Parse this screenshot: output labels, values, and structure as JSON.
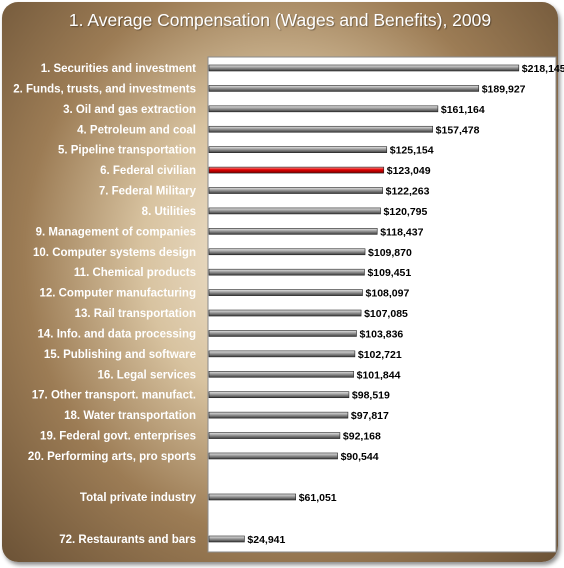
{
  "chart_data": {
    "type": "bar",
    "orientation": "horizontal",
    "title": "1. Average Compensation (Wages and Benefits), 2009",
    "categories": [
      "1. Securities and investment",
      "2. Funds, trusts, and investments",
      "3. Oil and gas extraction",
      "4. Petroleum and coal",
      "5. Pipeline transportation",
      "6. Federal civilian",
      "7. Federal Military",
      "8. Utilities",
      "9. Management of companies",
      "10. Computer systems design",
      "11. Chemical products",
      "12. Computer manufacturing",
      "13. Rail transportation",
      "14. Info. and data processing",
      "15. Publishing and software",
      "16. Legal services",
      "17. Other transport. manufact.",
      "18. Water transportation",
      "19. Federal govt. enterprises",
      "20. Performing arts, pro sports",
      "Total private industry",
      "72. Restaurants and bars"
    ],
    "values": [
      218145,
      189927,
      161164,
      157478,
      125154,
      123049,
      122263,
      120795,
      118437,
      109870,
      109451,
      108097,
      107085,
      103836,
      102721,
      101844,
      98519,
      97817,
      92168,
      90544,
      61051,
      24941
    ],
    "value_labels": [
      "$218,145",
      "$189,927",
      "$161,164",
      "$157,478",
      "$125,154",
      "$123,049",
      "$122,263",
      "$120,795",
      "$118,437",
      "$109,870",
      "$109,451",
      "$108,097",
      "$107,085",
      "$103,836",
      "$102,721",
      "$101,844",
      "$98,519",
      "$97,817",
      "$92,168",
      "$90,544",
      "$61,051",
      "$24,941"
    ],
    "highlight_index": 5,
    "xlim": [
      0,
      238000
    ],
    "grid": false,
    "legend": "none",
    "colors": {
      "bar": "#8c8c8c",
      "bar_highlight": "#d40000",
      "plot_background": "#ffffff",
      "frame": "#7a5c3c",
      "label_text": "#ffffff"
    }
  }
}
